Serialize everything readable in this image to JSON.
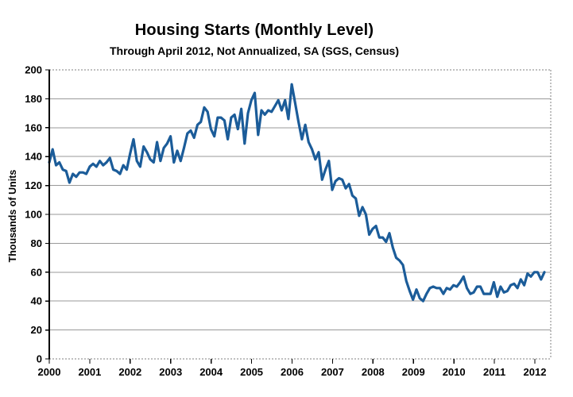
{
  "chart_data": {
    "type": "line",
    "title": "Housing Starts (Monthly Level)",
    "subtitle": "Through April 2012, Not Annualized, SA (SGS, Census)",
    "xlabel": "",
    "ylabel": "Thousands of Units",
    "ylim": [
      0,
      200
    ],
    "yticks": [
      0,
      20,
      40,
      60,
      80,
      100,
      120,
      140,
      160,
      180,
      200
    ],
    "xticks": [
      "2000",
      "2001",
      "2002",
      "2003",
      "2004",
      "2005",
      "2006",
      "2007",
      "2008",
      "2009",
      "2010",
      "2011",
      "2012"
    ],
    "grid": "horizontal solid gray lines; top, right and bottom plot frame dotted",
    "legend": "none",
    "period_start": "2000-01",
    "period_end": "2012-04",
    "frequency": "monthly",
    "series": [
      {
        "name": "Housing Starts, thousands of units per month",
        "color": "#1B5C99",
        "values": [
          136,
          145,
          134,
          136,
          131,
          130,
          122,
          128,
          126,
          129,
          129,
          128,
          133,
          135,
          133,
          137,
          134,
          136,
          139,
          131,
          130,
          128,
          134,
          131,
          142,
          152,
          137,
          133,
          147,
          143,
          138,
          136,
          150,
          137,
          146,
          149,
          154,
          136,
          144,
          137,
          146,
          156,
          158,
          153,
          162,
          164,
          174,
          171,
          159,
          154,
          167,
          167,
          165,
          152,
          167,
          169,
          159,
          173,
          149,
          170,
          179,
          184,
          155,
          172,
          169,
          172,
          171,
          175,
          179,
          172,
          179,
          166,
          190,
          177,
          164,
          152,
          162,
          150,
          145,
          138,
          143,
          124,
          131,
          137,
          117,
          123,
          125,
          124,
          118,
          121,
          113,
          111,
          99,
          105,
          100,
          86,
          90,
          92,
          84,
          84,
          81,
          87,
          77,
          70,
          68,
          65,
          54,
          47,
          41,
          48,
          42,
          40,
          45,
          49,
          50,
          49,
          49,
          45,
          49,
          48,
          51,
          50,
          53,
          57,
          49,
          45,
          46,
          50,
          50,
          45,
          45,
          45,
          53,
          43,
          50,
          46,
          47,
          51,
          52,
          49,
          55,
          51,
          59,
          57,
          60,
          60,
          55,
          60
        ]
      }
    ],
    "colors": {
      "line": "#1B5C99",
      "gridline": "#999999",
      "frame_dotted": "#808080",
      "axis": "#000000",
      "text": "#000000",
      "background": "#ffffff"
    }
  }
}
